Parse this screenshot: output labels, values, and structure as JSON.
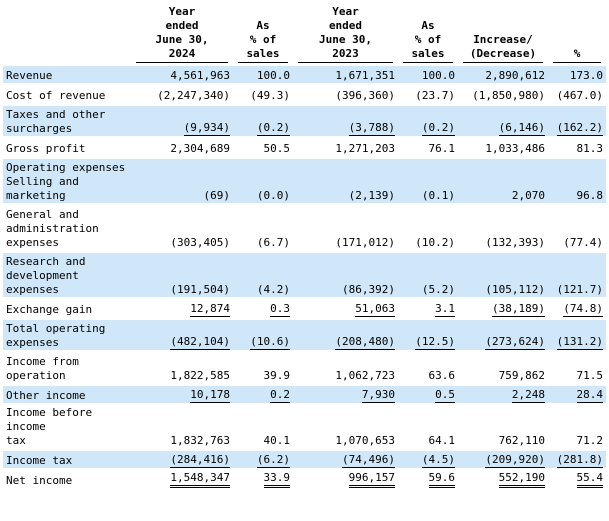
{
  "headers": [
    {
      "text": ""
    },
    {
      "text": "Year\nended\nJune 30,\n2024"
    },
    {
      "text": "As\n% of\nsales"
    },
    {
      "text": "Year\nended\nJune 30,\n2023"
    },
    {
      "text": "As\n% of\nsales"
    },
    {
      "text": "Increase/\n(Decrease)"
    },
    {
      "text": "%"
    }
  ],
  "rows": [
    {
      "label": "Revenue",
      "values": [
        "4,561,963",
        "100.0",
        "1,671,351",
        "100.0",
        "2,890,612",
        "173.0"
      ],
      "shade": true,
      "lines": 1
    },
    {
      "label": "Cost of revenue",
      "values": [
        "(2,247,340)",
        "(49.3)",
        "(396,360)",
        "(23.7)",
        "(1,850,980)",
        "(467.0)"
      ],
      "shade": false,
      "lines": 1
    },
    {
      "label": "Taxes and other\nsurcharges",
      "values": [
        "(9,934)",
        "(0.2)",
        "(3,788)",
        "(0.2)",
        "(6,146)",
        "(162.2)"
      ],
      "shade": true,
      "lines": 2,
      "underline": true
    },
    {
      "label": "Gross profit",
      "values": [
        "2,304,689",
        "50.5",
        "1,271,203",
        "76.1",
        "1,033,486",
        "81.3"
      ],
      "shade": false,
      "lines": 1
    },
    {
      "label": "Operating expenses\n Selling and\n marketing",
      "values": [
        "(69)",
        "(0.0)",
        "(2,139)",
        "(0.1)",
        "2,070",
        "96.8"
      ],
      "shade": true,
      "lines": 3
    },
    {
      "label": "General and\n administration\n expenses",
      "values": [
        "(303,405)",
        "(6.7)",
        "(171,012)",
        "(10.2)",
        "(132,393)",
        "(77.4)"
      ],
      "shade": false,
      "lines": 3
    },
    {
      "label": "Research and\n development\n expenses",
      "values": [
        "(191,504)",
        "(4.2)",
        "(86,392)",
        "(5.2)",
        "(105,112)",
        "(121.7)"
      ],
      "shade": true,
      "lines": 3
    },
    {
      "label": "Exchange gain",
      "values": [
        "12,874",
        "0.3",
        "51,063",
        "3.1",
        "(38,189)",
        "(74.8)"
      ],
      "shade": false,
      "lines": 1,
      "underline": true
    },
    {
      "label": "Total operating\n expenses",
      "values": [
        "(482,104)",
        "(10.6)",
        "(208,480)",
        "(12.5)",
        "(273,624)",
        "(131.2)"
      ],
      "shade": true,
      "lines": 2,
      "underline": true
    },
    {
      "label": "Income from\n operation",
      "values": [
        "1,822,585",
        "39.9",
        "1,062,723",
        "63.6",
        "759,862",
        "71.5"
      ],
      "shade": false,
      "lines": 2
    },
    {
      "label": "Other income",
      "values": [
        "10,178",
        "0.2",
        "7,930",
        "0.5",
        "2,248",
        "28.4"
      ],
      "shade": true,
      "lines": 1,
      "underline": true
    },
    {
      "label": "Income before income\n tax",
      "values": [
        "1,832,763",
        "40.1",
        "1,070,653",
        "64.1",
        "762,110",
        "71.2"
      ],
      "shade": false,
      "lines": 2
    },
    {
      "label": "Income tax",
      "values": [
        "(284,416)",
        "(6.2)",
        "(74,496)",
        "(4.5)",
        "(209,920)",
        "(281.8)"
      ],
      "shade": true,
      "lines": 1,
      "underline": true
    },
    {
      "label": "Net income",
      "values": [
        "1,548,347",
        "33.9",
        "996,157",
        "59.6",
        "552,190",
        "55.4"
      ],
      "shade": false,
      "lines": 1,
      "doubleline": true
    }
  ]
}
